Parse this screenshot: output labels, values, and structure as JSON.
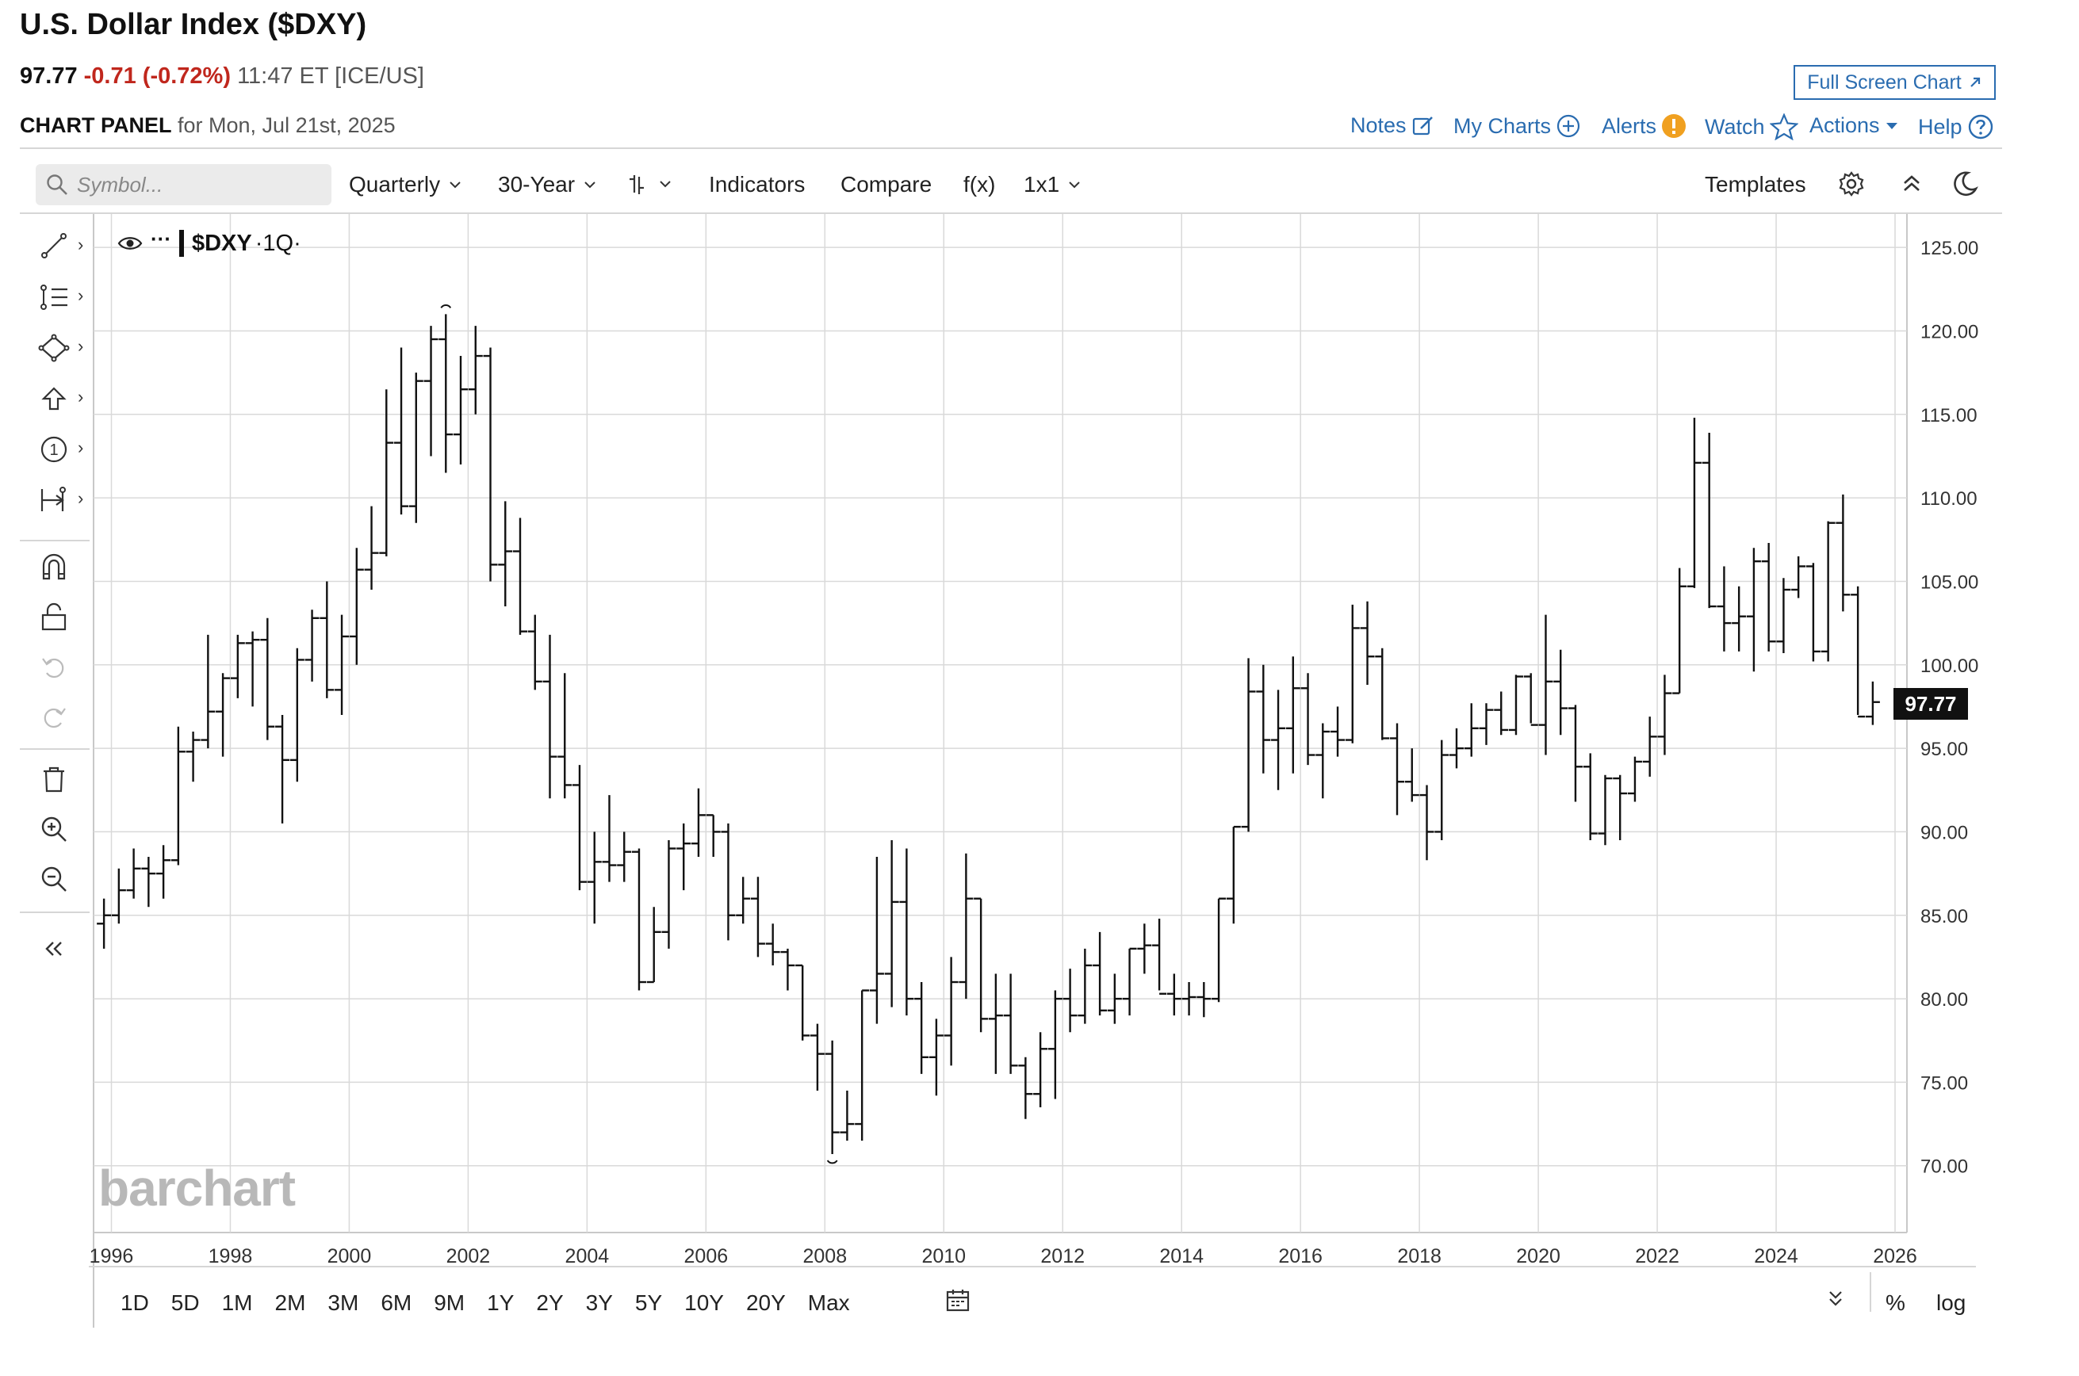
{
  "header": {
    "title": "U.S. Dollar Index ($DXY)",
    "last": "97.77",
    "change": "-0.71 (-0.72%)",
    "time_exchange": "11:47 ET [ICE/US]",
    "panel_label": "CHART PANEL",
    "panel_date": "for Mon, Jul 21st, 2025",
    "full_screen_label": "Full Screen Chart"
  },
  "nav": {
    "notes": "Notes",
    "my_charts": "My Charts",
    "alerts": "Alerts",
    "watch": "Watch",
    "actions": "Actions",
    "help": "Help"
  },
  "toolbar": {
    "search_placeholder": "Symbol...",
    "period": "Quarterly",
    "range": "30-Year",
    "indicators": "Indicators",
    "compare": "Compare",
    "fx": "f(x)",
    "layout": "1x1",
    "templates": "Templates"
  },
  "legend": {
    "symbol": "$DXY",
    "interval": "·1Q·"
  },
  "watermark": "barchart",
  "price_badge": "97.77",
  "bottom": {
    "ranges": [
      "1D",
      "5D",
      "1M",
      "2M",
      "3M",
      "6M",
      "9M",
      "1Y",
      "2Y",
      "3Y",
      "5Y",
      "10Y",
      "20Y",
      "Max"
    ],
    "percent": "%",
    "log": "log"
  },
  "icons": {
    "left_tools": [
      "line-draw-icon",
      "fib-lines-icon",
      "shapes-icon",
      "arrow-up-icon",
      "number-marker-icon",
      "measure-icon",
      "magnet-icon",
      "lock-icon",
      "undo-icon",
      "redo-icon",
      "trash-icon",
      "zoom-in-icon",
      "zoom-out-icon",
      "collapse-icon"
    ]
  },
  "colors": {
    "accent": "#2a6cb0",
    "negative": "#c0271d",
    "alert": "#f0a020",
    "bars": "#111111"
  },
  "chart_data": {
    "type": "ohlc",
    "symbol": "$DXY",
    "interval": "Quarterly",
    "ylim": [
      66,
      127
    ],
    "xlim": [
      1995.7,
      2026.2
    ],
    "y_ticks": [
      "70.00",
      "75.00",
      "80.00",
      "85.00",
      "90.00",
      "95.00",
      "100.00",
      "105.00",
      "110.00",
      "115.00",
      "120.00",
      "125.00"
    ],
    "x_ticks": [
      "1996",
      "1998",
      "2000",
      "2002",
      "2004",
      "2006",
      "2008",
      "2010",
      "2012",
      "2014",
      "2016",
      "2018",
      "2020",
      "2022",
      "2024",
      "2026"
    ],
    "last_price": 97.77,
    "high_marker": {
      "date": 2001.5,
      "value": 121.0
    },
    "low_marker": {
      "date": 2008.0,
      "value": 70.7
    },
    "bars": [
      {
        "t": 1995.75,
        "o": 84.5,
        "h": 86.0,
        "l": 83.0,
        "c": 85.0
      },
      {
        "t": 1996.0,
        "o": 85.0,
        "h": 87.8,
        "l": 84.5,
        "c": 86.5
      },
      {
        "t": 1996.25,
        "o": 86.5,
        "h": 89.0,
        "l": 86.0,
        "c": 87.8
      },
      {
        "t": 1996.5,
        "o": 87.8,
        "h": 88.5,
        "l": 85.5,
        "c": 87.5
      },
      {
        "t": 1996.75,
        "o": 87.5,
        "h": 89.2,
        "l": 86.0,
        "c": 88.3
      },
      {
        "t": 1997.0,
        "o": 88.3,
        "h": 96.3,
        "l": 88.0,
        "c": 94.8
      },
      {
        "t": 1997.25,
        "o": 94.8,
        "h": 96.0,
        "l": 93.0,
        "c": 95.5
      },
      {
        "t": 1997.5,
        "o": 95.5,
        "h": 101.8,
        "l": 95.0,
        "c": 97.2
      },
      {
        "t": 1997.75,
        "o": 97.2,
        "h": 99.5,
        "l": 94.5,
        "c": 99.2
      },
      {
        "t": 1998.0,
        "o": 99.2,
        "h": 101.8,
        "l": 98.0,
        "c": 101.3
      },
      {
        "t": 1998.25,
        "o": 101.3,
        "h": 102.0,
        "l": 97.5,
        "c": 101.5
      },
      {
        "t": 1998.5,
        "o": 101.5,
        "h": 102.8,
        "l": 95.5,
        "c": 96.3
      },
      {
        "t": 1998.75,
        "o": 96.3,
        "h": 97.0,
        "l": 90.5,
        "c": 94.3
      },
      {
        "t": 1999.0,
        "o": 94.3,
        "h": 101.0,
        "l": 93.0,
        "c": 100.3
      },
      {
        "t": 1999.25,
        "o": 100.3,
        "h": 103.3,
        "l": 99.0,
        "c": 102.8
      },
      {
        "t": 1999.5,
        "o": 102.8,
        "h": 105.0,
        "l": 98.0,
        "c": 98.5
      },
      {
        "t": 1999.75,
        "o": 98.5,
        "h": 103.0,
        "l": 97.0,
        "c": 101.7
      },
      {
        "t": 2000.0,
        "o": 101.7,
        "h": 107.0,
        "l": 100.0,
        "c": 105.7
      },
      {
        "t": 2000.25,
        "o": 105.7,
        "h": 109.5,
        "l": 104.5,
        "c": 106.7
      },
      {
        "t": 2000.5,
        "o": 106.7,
        "h": 116.5,
        "l": 106.5,
        "c": 113.3
      },
      {
        "t": 2000.75,
        "o": 113.3,
        "h": 119.0,
        "l": 109.0,
        "c": 109.5
      },
      {
        "t": 2001.0,
        "o": 109.5,
        "h": 117.5,
        "l": 108.5,
        "c": 117.0
      },
      {
        "t": 2001.25,
        "o": 117.0,
        "h": 120.3,
        "l": 112.5,
        "c": 119.5
      },
      {
        "t": 2001.5,
        "o": 119.5,
        "h": 121.0,
        "l": 111.5,
        "c": 113.8
      },
      {
        "t": 2001.75,
        "o": 113.8,
        "h": 118.5,
        "l": 112.0,
        "c": 116.5
      },
      {
        "t": 2002.0,
        "o": 116.5,
        "h": 120.3,
        "l": 115.0,
        "c": 118.5
      },
      {
        "t": 2002.25,
        "o": 118.5,
        "h": 119.0,
        "l": 105.0,
        "c": 106.0
      },
      {
        "t": 2002.5,
        "o": 106.0,
        "h": 109.8,
        "l": 103.5,
        "c": 106.8
      },
      {
        "t": 2002.75,
        "o": 106.8,
        "h": 108.8,
        "l": 101.8,
        "c": 102.0
      },
      {
        "t": 2003.0,
        "o": 102.0,
        "h": 103.0,
        "l": 98.5,
        "c": 99.0
      },
      {
        "t": 2003.25,
        "o": 99.0,
        "h": 101.8,
        "l": 92.0,
        "c": 94.5
      },
      {
        "t": 2003.5,
        "o": 94.5,
        "h": 99.5,
        "l": 92.0,
        "c": 92.8
      },
      {
        "t": 2003.75,
        "o": 92.8,
        "h": 94.0,
        "l": 86.5,
        "c": 87.0
      },
      {
        "t": 2004.0,
        "o": 87.0,
        "h": 90.0,
        "l": 84.5,
        "c": 88.2
      },
      {
        "t": 2004.25,
        "o": 88.2,
        "h": 92.2,
        "l": 87.0,
        "c": 88.0
      },
      {
        "t": 2004.5,
        "o": 88.0,
        "h": 90.0,
        "l": 87.0,
        "c": 88.8
      },
      {
        "t": 2004.75,
        "o": 88.8,
        "h": 89.0,
        "l": 80.5,
        "c": 81.0
      },
      {
        "t": 2005.0,
        "o": 81.0,
        "h": 85.5,
        "l": 81.0,
        "c": 84.0
      },
      {
        "t": 2005.25,
        "o": 84.0,
        "h": 89.5,
        "l": 83.0,
        "c": 89.0
      },
      {
        "t": 2005.5,
        "o": 89.0,
        "h": 90.5,
        "l": 86.5,
        "c": 89.3
      },
      {
        "t": 2005.75,
        "o": 89.3,
        "h": 92.6,
        "l": 88.5,
        "c": 91.0
      },
      {
        "t": 2006.0,
        "o": 91.0,
        "h": 91.0,
        "l": 88.5,
        "c": 90.0
      },
      {
        "t": 2006.25,
        "o": 90.0,
        "h": 90.5,
        "l": 83.5,
        "c": 85.0
      },
      {
        "t": 2006.5,
        "o": 85.0,
        "h": 87.3,
        "l": 84.5,
        "c": 86.0
      },
      {
        "t": 2006.75,
        "o": 86.0,
        "h": 87.3,
        "l": 82.5,
        "c": 83.3
      },
      {
        "t": 2007.0,
        "o": 83.3,
        "h": 84.5,
        "l": 82.0,
        "c": 82.8
      },
      {
        "t": 2007.25,
        "o": 82.8,
        "h": 83.0,
        "l": 80.5,
        "c": 82.0
      },
      {
        "t": 2007.5,
        "o": 82.0,
        "h": 82.0,
        "l": 77.5,
        "c": 77.8
      },
      {
        "t": 2007.75,
        "o": 77.8,
        "h": 78.5,
        "l": 74.5,
        "c": 76.7
      },
      {
        "t": 2008.0,
        "o": 76.7,
        "h": 77.5,
        "l": 70.7,
        "c": 72.0
      },
      {
        "t": 2008.25,
        "o": 72.0,
        "h": 74.5,
        "l": 71.5,
        "c": 72.5
      },
      {
        "t": 2008.5,
        "o": 72.5,
        "h": 80.5,
        "l": 71.5,
        "c": 80.5
      },
      {
        "t": 2008.75,
        "o": 80.5,
        "h": 88.5,
        "l": 78.5,
        "c": 81.5
      },
      {
        "t": 2009.0,
        "o": 81.5,
        "h": 89.5,
        "l": 79.5,
        "c": 85.8
      },
      {
        "t": 2009.25,
        "o": 85.8,
        "h": 89.0,
        "l": 79.0,
        "c": 80.0
      },
      {
        "t": 2009.5,
        "o": 80.0,
        "h": 81.0,
        "l": 75.5,
        "c": 76.5
      },
      {
        "t": 2009.75,
        "o": 76.5,
        "h": 78.8,
        "l": 74.2,
        "c": 77.8
      },
      {
        "t": 2010.0,
        "o": 77.8,
        "h": 82.5,
        "l": 76.0,
        "c": 81.0
      },
      {
        "t": 2010.25,
        "o": 81.0,
        "h": 88.7,
        "l": 80.0,
        "c": 86.0
      },
      {
        "t": 2010.5,
        "o": 86.0,
        "h": 86.0,
        "l": 78.0,
        "c": 78.8
      },
      {
        "t": 2010.75,
        "o": 78.8,
        "h": 81.5,
        "l": 75.5,
        "c": 79.0
      },
      {
        "t": 2011.0,
        "o": 79.0,
        "h": 81.5,
        "l": 75.5,
        "c": 76.0
      },
      {
        "t": 2011.25,
        "o": 76.0,
        "h": 76.5,
        "l": 72.8,
        "c": 74.3
      },
      {
        "t": 2011.5,
        "o": 74.3,
        "h": 78.0,
        "l": 73.5,
        "c": 77.0
      },
      {
        "t": 2011.75,
        "o": 77.0,
        "h": 80.5,
        "l": 74.0,
        "c": 80.0
      },
      {
        "t": 2012.0,
        "o": 80.0,
        "h": 81.8,
        "l": 78.0,
        "c": 79.0
      },
      {
        "t": 2012.25,
        "o": 79.0,
        "h": 83.0,
        "l": 78.5,
        "c": 82.0
      },
      {
        "t": 2012.5,
        "o": 82.0,
        "h": 84.0,
        "l": 79.0,
        "c": 79.3
      },
      {
        "t": 2012.75,
        "o": 79.3,
        "h": 81.5,
        "l": 78.5,
        "c": 80.0
      },
      {
        "t": 2013.0,
        "o": 80.0,
        "h": 83.0,
        "l": 79.0,
        "c": 83.0
      },
      {
        "t": 2013.25,
        "o": 83.0,
        "h": 84.5,
        "l": 81.5,
        "c": 83.2
      },
      {
        "t": 2013.5,
        "o": 83.2,
        "h": 84.8,
        "l": 80.5,
        "c": 80.3
      },
      {
        "t": 2013.75,
        "o": 80.3,
        "h": 81.5,
        "l": 79.0,
        "c": 80.0
      },
      {
        "t": 2014.0,
        "o": 80.0,
        "h": 81.0,
        "l": 79.0,
        "c": 80.1
      },
      {
        "t": 2014.25,
        "o": 80.1,
        "h": 81.0,
        "l": 78.9,
        "c": 80.0
      },
      {
        "t": 2014.5,
        "o": 80.0,
        "h": 86.0,
        "l": 79.8,
        "c": 86.0
      },
      {
        "t": 2014.75,
        "o": 86.0,
        "h": 90.3,
        "l": 84.5,
        "c": 90.3
      },
      {
        "t": 2015.0,
        "o": 90.3,
        "h": 100.4,
        "l": 90.0,
        "c": 98.4
      },
      {
        "t": 2015.25,
        "o": 98.4,
        "h": 100.0,
        "l": 93.5,
        "c": 95.5
      },
      {
        "t": 2015.5,
        "o": 95.5,
        "h": 98.5,
        "l": 92.5,
        "c": 96.2
      },
      {
        "t": 2015.75,
        "o": 96.2,
        "h": 100.5,
        "l": 93.5,
        "c": 98.6
      },
      {
        "t": 2016.0,
        "o": 98.6,
        "h": 99.5,
        "l": 94.0,
        "c": 94.6
      },
      {
        "t": 2016.25,
        "o": 94.6,
        "h": 96.5,
        "l": 92.0,
        "c": 96.0
      },
      {
        "t": 2016.5,
        "o": 96.0,
        "h": 97.5,
        "l": 94.5,
        "c": 95.5
      },
      {
        "t": 2016.75,
        "o": 95.5,
        "h": 103.6,
        "l": 95.3,
        "c": 102.2
      },
      {
        "t": 2017.0,
        "o": 102.2,
        "h": 103.8,
        "l": 98.8,
        "c": 100.5
      },
      {
        "t": 2017.25,
        "o": 100.5,
        "h": 101.0,
        "l": 95.5,
        "c": 95.6
      },
      {
        "t": 2017.5,
        "o": 95.6,
        "h": 96.5,
        "l": 91.0,
        "c": 93.0
      },
      {
        "t": 2017.75,
        "o": 93.0,
        "h": 95.0,
        "l": 91.8,
        "c": 92.2
      },
      {
        "t": 2018.0,
        "o": 92.2,
        "h": 92.8,
        "l": 88.3,
        "c": 90.0
      },
      {
        "t": 2018.25,
        "o": 90.0,
        "h": 95.5,
        "l": 89.5,
        "c": 94.6
      },
      {
        "t": 2018.5,
        "o": 94.6,
        "h": 96.2,
        "l": 93.8,
        "c": 95.0
      },
      {
        "t": 2018.75,
        "o": 95.0,
        "h": 97.7,
        "l": 94.5,
        "c": 96.2
      },
      {
        "t": 2019.0,
        "o": 96.2,
        "h": 97.7,
        "l": 95.2,
        "c": 97.3
      },
      {
        "t": 2019.25,
        "o": 97.3,
        "h": 98.4,
        "l": 95.8,
        "c": 96.1
      },
      {
        "t": 2019.5,
        "o": 96.1,
        "h": 99.4,
        "l": 95.8,
        "c": 99.3
      },
      {
        "t": 2019.75,
        "o": 99.3,
        "h": 99.5,
        "l": 96.5,
        "c": 96.4
      },
      {
        "t": 2020.0,
        "o": 96.4,
        "h": 103.0,
        "l": 94.6,
        "c": 99.0
      },
      {
        "t": 2020.25,
        "o": 99.0,
        "h": 100.9,
        "l": 95.8,
        "c": 97.4
      },
      {
        "t": 2020.5,
        "o": 97.4,
        "h": 97.6,
        "l": 91.8,
        "c": 93.9
      },
      {
        "t": 2020.75,
        "o": 93.9,
        "h": 94.7,
        "l": 89.5,
        "c": 89.9
      },
      {
        "t": 2021.0,
        "o": 89.9,
        "h": 93.4,
        "l": 89.2,
        "c": 93.2
      },
      {
        "t": 2021.25,
        "o": 93.2,
        "h": 93.4,
        "l": 89.5,
        "c": 92.3
      },
      {
        "t": 2021.5,
        "o": 92.3,
        "h": 94.5,
        "l": 91.8,
        "c": 94.2
      },
      {
        "t": 2021.75,
        "o": 94.2,
        "h": 96.9,
        "l": 93.3,
        "c": 95.7
      },
      {
        "t": 2022.0,
        "o": 95.7,
        "h": 99.4,
        "l": 94.6,
        "c": 98.3
      },
      {
        "t": 2022.25,
        "o": 98.3,
        "h": 105.8,
        "l": 98.3,
        "c": 104.7
      },
      {
        "t": 2022.5,
        "o": 104.7,
        "h": 114.8,
        "l": 104.6,
        "c": 112.1
      },
      {
        "t": 2022.75,
        "o": 112.1,
        "h": 113.9,
        "l": 103.4,
        "c": 103.5
      },
      {
        "t": 2023.0,
        "o": 103.5,
        "h": 105.9,
        "l": 100.8,
        "c": 102.5
      },
      {
        "t": 2023.25,
        "o": 102.5,
        "h": 104.7,
        "l": 100.8,
        "c": 102.9
      },
      {
        "t": 2023.5,
        "o": 102.9,
        "h": 107.0,
        "l": 99.6,
        "c": 106.2
      },
      {
        "t": 2023.75,
        "o": 106.2,
        "h": 107.3,
        "l": 100.8,
        "c": 101.4
      },
      {
        "t": 2024.0,
        "o": 101.4,
        "h": 105.2,
        "l": 100.7,
        "c": 104.5
      },
      {
        "t": 2024.25,
        "o": 104.5,
        "h": 106.5,
        "l": 104.0,
        "c": 105.9
      },
      {
        "t": 2024.5,
        "o": 105.9,
        "h": 106.1,
        "l": 100.2,
        "c": 100.8
      },
      {
        "t": 2024.75,
        "o": 100.8,
        "h": 108.6,
        "l": 100.2,
        "c": 108.5
      },
      {
        "t": 2025.0,
        "o": 108.5,
        "h": 110.2,
        "l": 103.2,
        "c": 104.2
      },
      {
        "t": 2025.25,
        "o": 104.2,
        "h": 104.7,
        "l": 97.0,
        "c": 96.9
      },
      {
        "t": 2025.5,
        "o": 96.9,
        "h": 99.0,
        "l": 96.4,
        "c": 97.77
      }
    ]
  }
}
